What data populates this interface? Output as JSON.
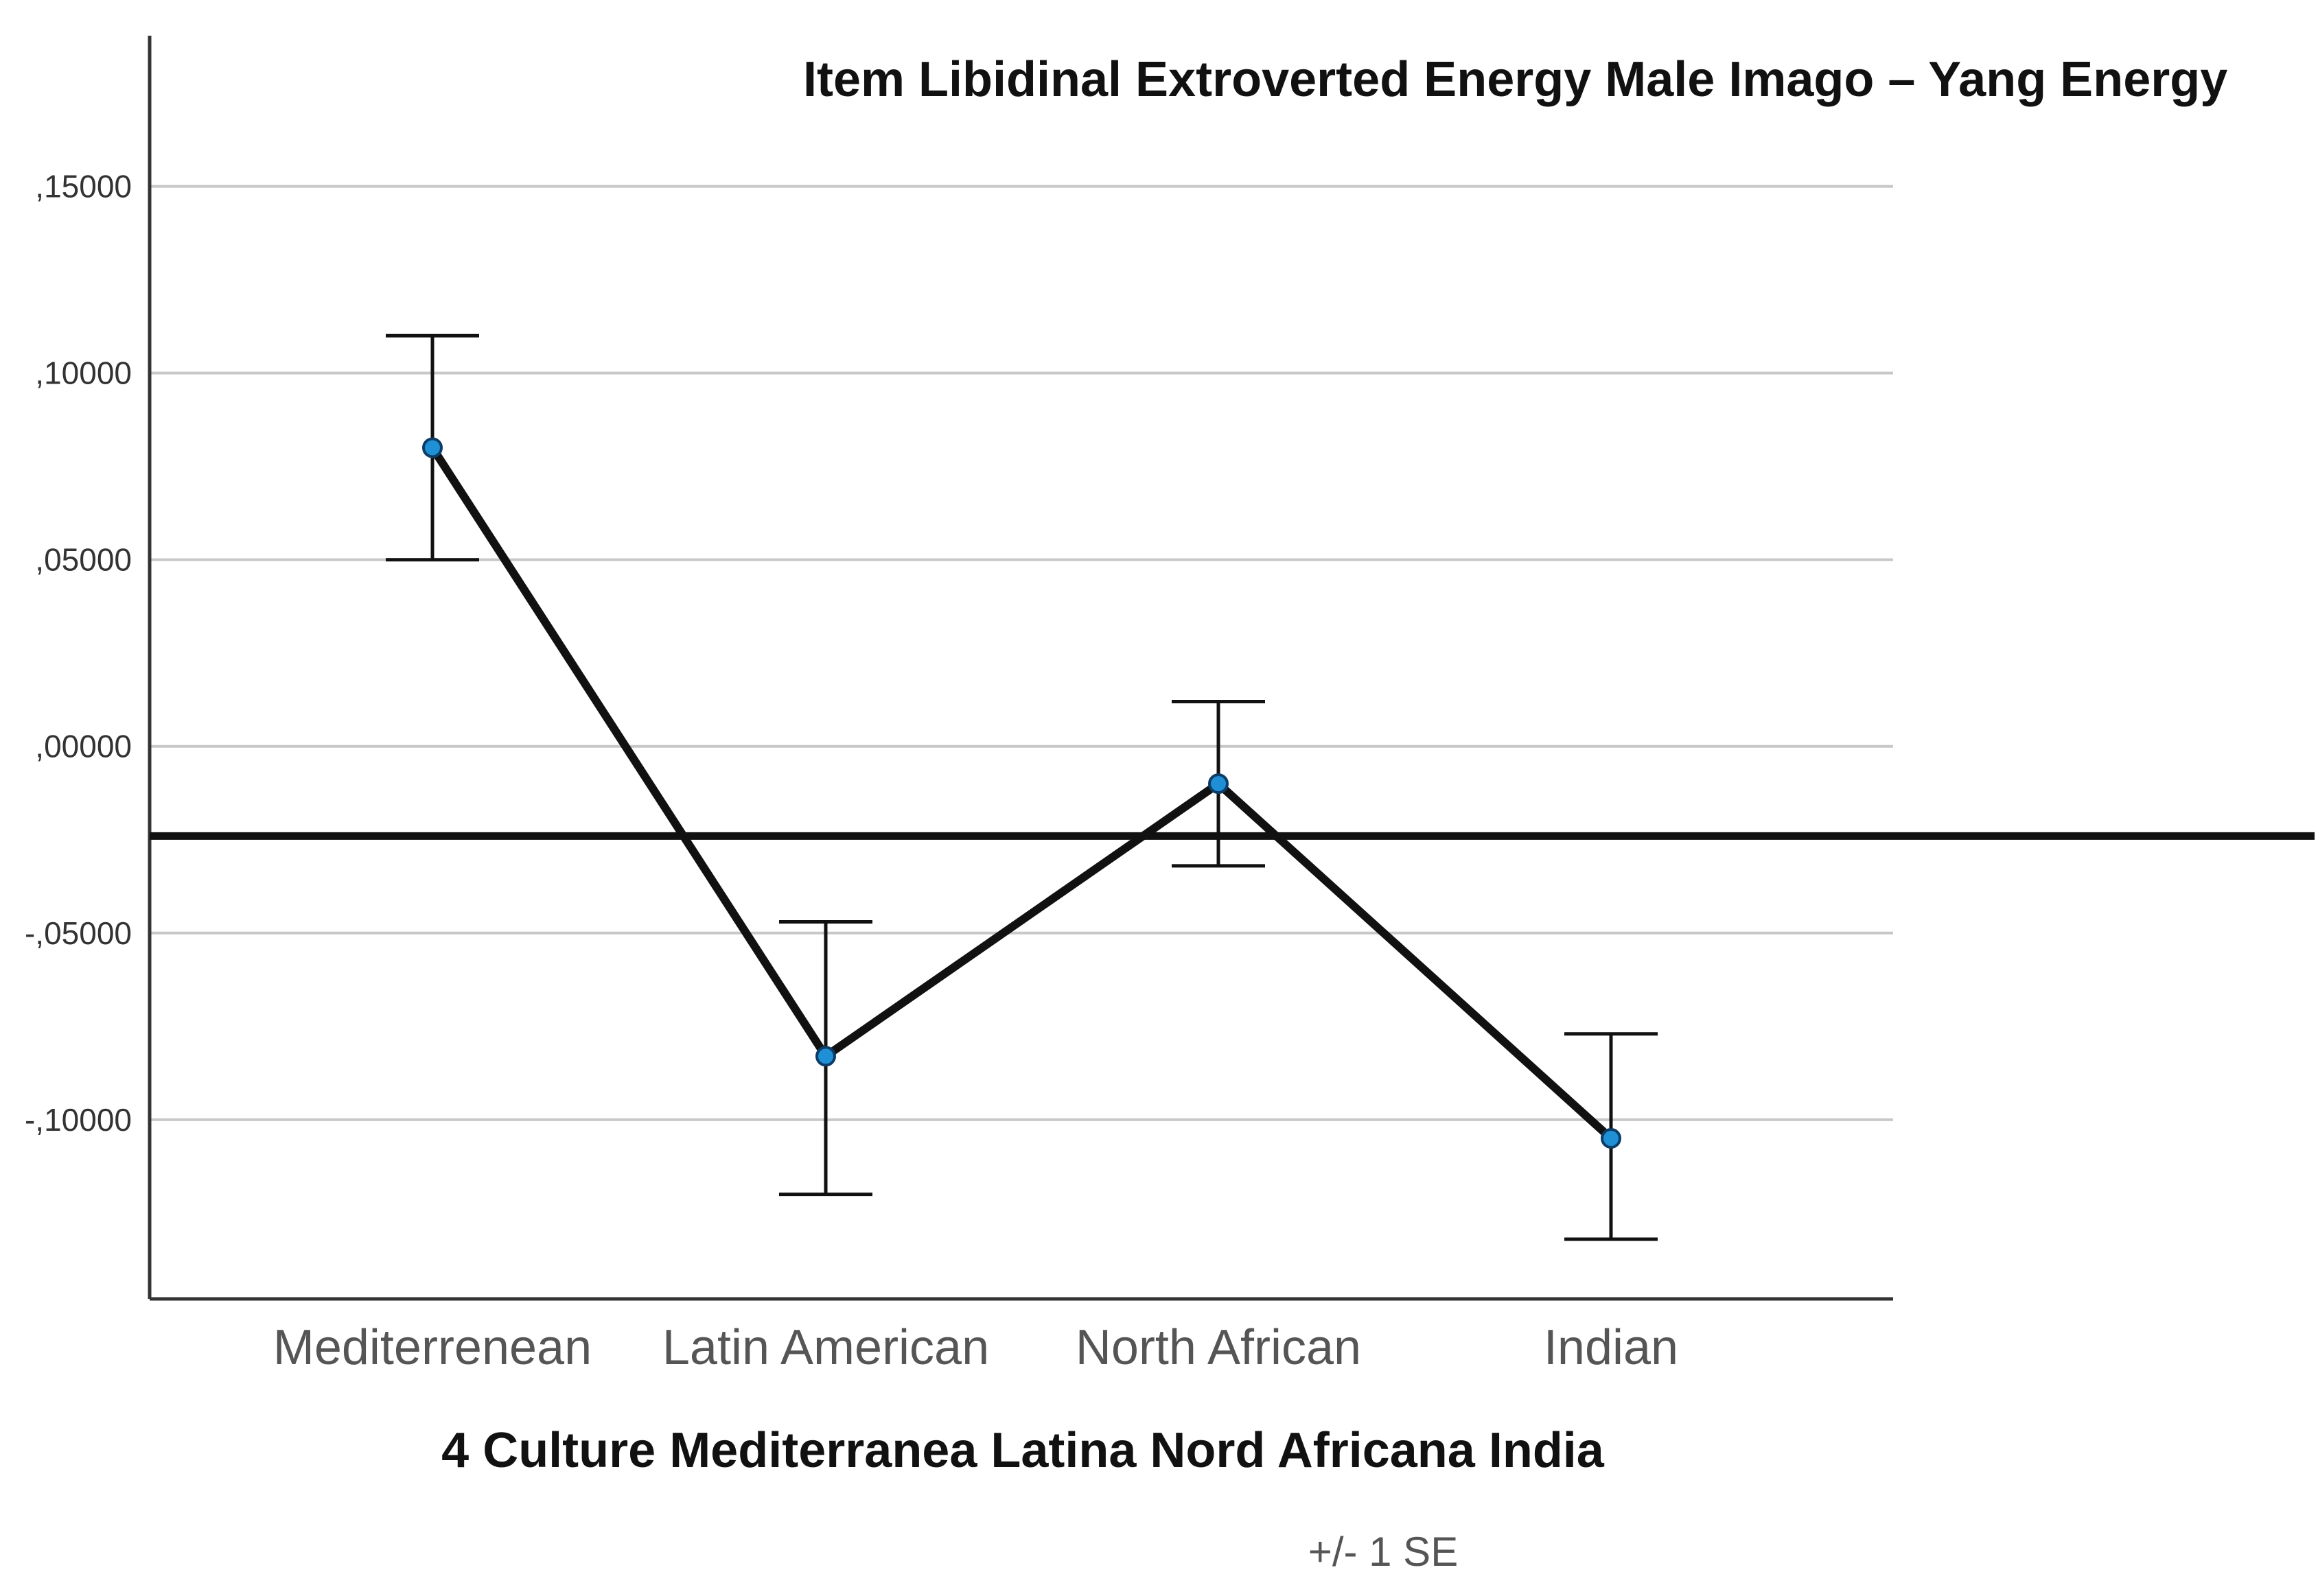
{
  "chart_data": {
    "type": "line",
    "title": "Item Libidinal Extroverted Energy Male Imago – Yang Energy",
    "xlabel": "4 Culture Mediterranea Latina Nord Africana India",
    "ylabel": "",
    "note": "+/- 1 SE",
    "categories": [
      "Mediterrenean",
      "Latin American",
      "North African",
      "Indian"
    ],
    "ylim": [
      -0.148,
      0.165
    ],
    "yticks": [
      0.15,
      0.1,
      0.05,
      0.0,
      -0.05,
      -0.1
    ],
    "ytick_labels": [
      ",15000",
      ",10000",
      ",05000",
      ",00000",
      "-,05000",
      "-,10000"
    ],
    "reference_line": -0.024,
    "grid": "horizontal",
    "series": [
      {
        "values": [
          0.08,
          -0.083,
          -0.01,
          -0.105
        ],
        "error_upper": [
          0.11,
          -0.047,
          0.012,
          -0.077
        ],
        "error_lower": [
          0.05,
          -0.12,
          -0.032,
          -0.132
        ]
      }
    ],
    "colors": {
      "line": "#111111",
      "marker": "#1f8fd6",
      "grid": "#c8c8c8",
      "error_bar": "#111111"
    }
  }
}
